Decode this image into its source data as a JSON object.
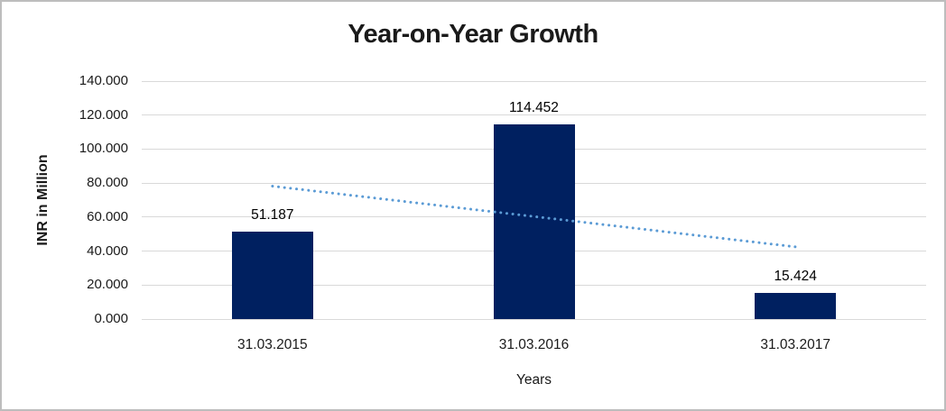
{
  "chart_data": {
    "type": "bar",
    "title": "Year-on-Year Growth",
    "xlabel": "Years",
    "ylabel": "INR in Million",
    "categories": [
      "31.03.2015",
      "31.03.2016",
      "31.03.2017"
    ],
    "values": [
      51.187,
      114.452,
      15.424
    ],
    "data_labels": [
      "51.187",
      "114.452",
      "15.424"
    ],
    "ylim": [
      0,
      140
    ],
    "yticks": [
      {
        "value": 0,
        "label": "0.000"
      },
      {
        "value": 20,
        "label": "20.000"
      },
      {
        "value": 40,
        "label": "40.000"
      },
      {
        "value": 60,
        "label": "60.000"
      },
      {
        "value": 80,
        "label": "80.000"
      },
      {
        "value": 100,
        "label": "100.000"
      },
      {
        "value": 120,
        "label": "120.000"
      },
      {
        "value": 140,
        "label": "140.000"
      }
    ],
    "grid": "horizontal",
    "legend": "none",
    "bar_color": "#002060",
    "gridline_color": "#d9d9d9",
    "frame_border_color": "#bdbdbd",
    "trendline": {
      "style": "dotted",
      "color": "#5B9BD5",
      "start_value": 78.2,
      "end_value": 42.5
    }
  }
}
